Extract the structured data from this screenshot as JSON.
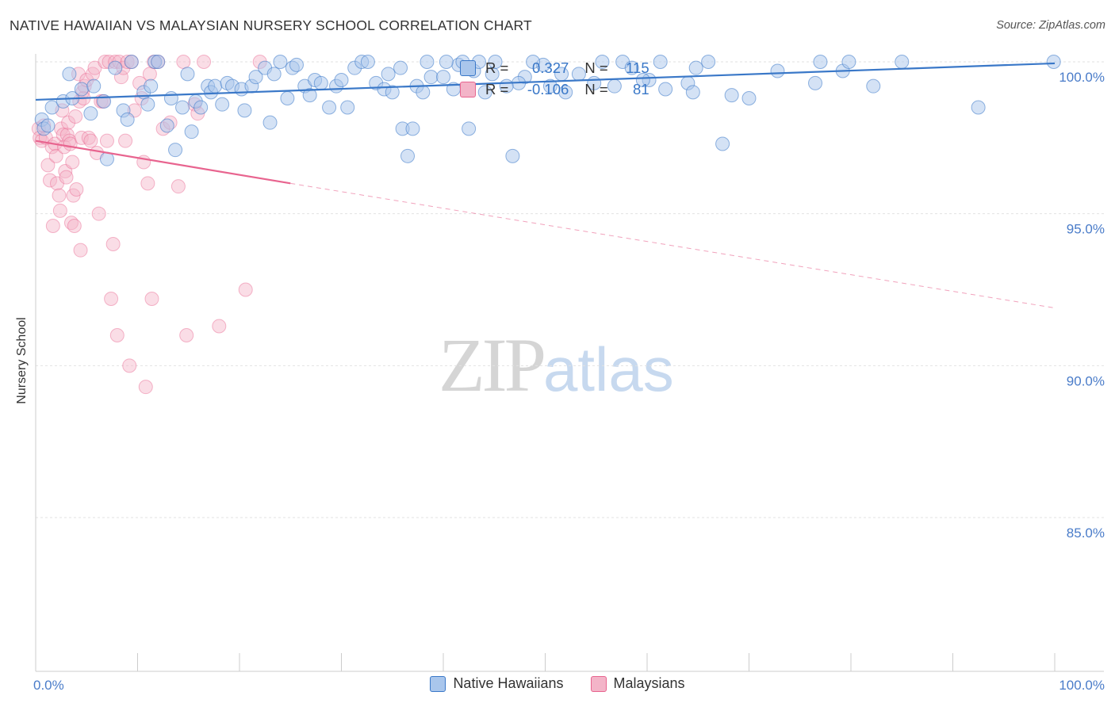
{
  "title": "NATIVE HAWAIIAN VS MALAYSIAN NURSERY SCHOOL CORRELATION CHART",
  "source": "Source: ZipAtlas.com",
  "watermark": {
    "zip": "ZIP",
    "atlas": "atlas"
  },
  "colors": {
    "blue": "#3a78c8",
    "blue_fill": "#a9c6ec",
    "pink": "#e8648f",
    "pink_fill": "#f3b4c8",
    "grid": "#e2e2e2",
    "tick_text": "#4a7cc9"
  },
  "stats": {
    "blue": {
      "r_label": "R =",
      "r_value": "0.327",
      "n_label": "N =",
      "n_value": "115"
    },
    "pink": {
      "r_label": "R =",
      "r_value": "-0.106",
      "n_label": "N =",
      "n_value": "81"
    }
  },
  "chart_data": {
    "type": "scatter",
    "title": "NATIVE HAWAIIAN VS MALAYSIAN NURSERY SCHOOL CORRELATION CHART",
    "xlabel": "",
    "ylabel": "Nursery School",
    "xlim": [
      0,
      100
    ],
    "ylim": [
      80.5,
      100.8
    ],
    "x_tick_labels": [
      "0.0%",
      "100.0%"
    ],
    "y_ticks": [
      85,
      90,
      95,
      100
    ],
    "y_tick_labels": [
      "85.0%",
      "90.0%",
      "95.0%",
      "100.0%"
    ],
    "legend": [
      "Native Hawaiians",
      "Malaysians"
    ],
    "series": [
      {
        "name": "Native Hawaiians",
        "color": "#3a78c8",
        "trend": {
          "x": [
            0,
            100
          ],
          "y": [
            98.75,
            99.95
          ],
          "dashed_x": null
        },
        "points": [
          [
            0.6,
            98.1
          ],
          [
            0.8,
            97.8
          ],
          [
            1.2,
            97.9
          ],
          [
            1.6,
            98.5
          ],
          [
            2.7,
            98.7
          ],
          [
            3.3,
            99.6
          ],
          [
            3.6,
            98.8
          ],
          [
            4.5,
            99.1
          ],
          [
            5.4,
            98.3
          ],
          [
            5.7,
            99.2
          ],
          [
            6.7,
            98.7
          ],
          [
            7.0,
            96.8
          ],
          [
            7.8,
            99.8
          ],
          [
            8.6,
            98.4
          ],
          [
            9.0,
            98.1
          ],
          [
            9.4,
            100.0
          ],
          [
            10.6,
            99.0
          ],
          [
            11.0,
            98.6
          ],
          [
            11.3,
            99.2
          ],
          [
            11.7,
            100.0
          ],
          [
            12.0,
            100.0
          ],
          [
            12.9,
            97.9
          ],
          [
            13.3,
            98.8
          ],
          [
            13.7,
            97.1
          ],
          [
            14.4,
            98.5
          ],
          [
            14.9,
            99.6
          ],
          [
            15.3,
            97.7
          ],
          [
            15.7,
            98.7
          ],
          [
            16.2,
            98.5
          ],
          [
            16.9,
            99.2
          ],
          [
            17.2,
            99.0
          ],
          [
            17.6,
            99.2
          ],
          [
            18.3,
            98.6
          ],
          [
            18.8,
            99.3
          ],
          [
            19.3,
            99.2
          ],
          [
            20.2,
            99.1
          ],
          [
            20.5,
            98.4
          ],
          [
            21.2,
            99.2
          ],
          [
            21.6,
            99.5
          ],
          [
            22.5,
            99.8
          ],
          [
            23.0,
            98.0
          ],
          [
            23.4,
            99.6
          ],
          [
            24.0,
            100.0
          ],
          [
            24.7,
            98.8
          ],
          [
            25.2,
            99.8
          ],
          [
            25.6,
            99.9
          ],
          [
            26.4,
            99.2
          ],
          [
            26.9,
            98.9
          ],
          [
            27.4,
            99.4
          ],
          [
            28.0,
            99.3
          ],
          [
            28.8,
            98.5
          ],
          [
            29.5,
            99.2
          ],
          [
            30.0,
            99.4
          ],
          [
            30.6,
            98.5
          ],
          [
            31.3,
            99.8
          ],
          [
            32.0,
            100.0
          ],
          [
            32.6,
            100.0
          ],
          [
            33.4,
            99.3
          ],
          [
            34.2,
            99.1
          ],
          [
            34.6,
            99.6
          ],
          [
            35.0,
            99.0
          ],
          [
            35.8,
            99.8
          ],
          [
            36.0,
            97.8
          ],
          [
            36.5,
            96.9
          ],
          [
            37.0,
            97.8
          ],
          [
            37.4,
            99.2
          ],
          [
            38.0,
            99.0
          ],
          [
            38.4,
            100.0
          ],
          [
            38.8,
            99.5
          ],
          [
            40.0,
            99.5
          ],
          [
            41.0,
            99.1
          ],
          [
            41.5,
            99.9
          ],
          [
            42.5,
            97.8
          ],
          [
            43.0,
            99.7
          ],
          [
            44.8,
            99.6
          ],
          [
            46.8,
            96.9
          ],
          [
            48.0,
            99.5
          ],
          [
            49.8,
            99.9
          ],
          [
            50.5,
            99.2
          ],
          [
            51.6,
            99.6
          ],
          [
            56.8,
            99.2
          ],
          [
            60.2,
            99.4
          ],
          [
            61.8,
            99.1
          ],
          [
            64.0,
            99.3
          ],
          [
            64.5,
            99.0
          ],
          [
            66.0,
            100.0
          ],
          [
            64.8,
            99.8
          ],
          [
            67.4,
            97.3
          ],
          [
            68.3,
            98.9
          ],
          [
            70.0,
            98.8
          ],
          [
            72.8,
            99.7
          ],
          [
            76.5,
            99.3
          ],
          [
            77.0,
            100.0
          ],
          [
            79.2,
            99.7
          ],
          [
            79.8,
            100.0
          ],
          [
            82.2,
            99.2
          ],
          [
            85.0,
            100.0
          ],
          [
            92.5,
            98.5
          ],
          [
            99.9,
            100.0
          ],
          [
            43.5,
            100.0
          ],
          [
            44.1,
            99.0
          ],
          [
            45.1,
            100.0
          ],
          [
            48.8,
            100.0
          ],
          [
            53.3,
            99.6
          ],
          [
            54.8,
            99.3
          ],
          [
            57.6,
            100.0
          ],
          [
            59.6,
            99.4
          ],
          [
            61.3,
            100.0
          ],
          [
            52.0,
            99.0
          ],
          [
            47.4,
            99.3
          ],
          [
            40.3,
            100.0
          ],
          [
            41.9,
            100.0
          ],
          [
            46.2,
            99.2
          ],
          [
            58.5,
            99.8
          ],
          [
            55.6,
            100.0
          ]
        ]
      },
      {
        "name": "Malaysians",
        "color": "#e8648f",
        "trend": {
          "x": [
            0,
            25
          ],
          "y": [
            97.4,
            96.0
          ],
          "dashed_x": [
            25,
            100
          ],
          "dashed_y": [
            96.0,
            91.9
          ]
        },
        "points": [
          [
            0.3,
            97.8
          ],
          [
            0.4,
            97.5
          ],
          [
            0.6,
            97.4
          ],
          [
            0.8,
            97.9
          ],
          [
            1.0,
            97.5
          ],
          [
            1.2,
            96.6
          ],
          [
            1.4,
            96.1
          ],
          [
            1.6,
            97.2
          ],
          [
            1.7,
            94.6
          ],
          [
            1.9,
            97.3
          ],
          [
            2.0,
            96.9
          ],
          [
            2.1,
            96.0
          ],
          [
            2.3,
            95.6
          ],
          [
            2.4,
            95.1
          ],
          [
            2.5,
            97.8
          ],
          [
            2.6,
            98.4
          ],
          [
            2.7,
            97.6
          ],
          [
            2.8,
            97.2
          ],
          [
            2.9,
            96.4
          ],
          [
            3.0,
            96.2
          ],
          [
            3.1,
            97.6
          ],
          [
            3.2,
            98.0
          ],
          [
            3.3,
            97.4
          ],
          [
            3.4,
            97.3
          ],
          [
            3.5,
            94.7
          ],
          [
            3.6,
            96.7
          ],
          [
            3.7,
            95.6
          ],
          [
            3.8,
            94.6
          ],
          [
            3.9,
            98.2
          ],
          [
            4.0,
            95.8
          ],
          [
            4.2,
            99.6
          ],
          [
            4.3,
            98.7
          ],
          [
            4.4,
            93.8
          ],
          [
            4.5,
            97.5
          ],
          [
            4.6,
            99.0
          ],
          [
            4.7,
            98.8
          ],
          [
            4.8,
            99.2
          ],
          [
            5.0,
            99.4
          ],
          [
            5.2,
            97.5
          ],
          [
            5.4,
            97.4
          ],
          [
            5.6,
            99.6
          ],
          [
            5.8,
            99.8
          ],
          [
            6.0,
            97.0
          ],
          [
            6.2,
            95.0
          ],
          [
            6.4,
            98.7
          ],
          [
            6.6,
            98.7
          ],
          [
            6.8,
            100.0
          ],
          [
            7.0,
            97.4
          ],
          [
            7.2,
            100.0
          ],
          [
            7.4,
            92.2
          ],
          [
            7.6,
            94.0
          ],
          [
            7.8,
            100.0
          ],
          [
            8.0,
            91.0
          ],
          [
            8.2,
            100.0
          ],
          [
            8.4,
            99.5
          ],
          [
            8.6,
            99.8
          ],
          [
            8.8,
            97.4
          ],
          [
            9.0,
            100.0
          ],
          [
            9.2,
            90.0
          ],
          [
            9.4,
            100.0
          ],
          [
            10.2,
            99.3
          ],
          [
            10.4,
            98.8
          ],
          [
            10.6,
            96.7
          ],
          [
            10.8,
            89.3
          ],
          [
            11.0,
            96.0
          ],
          [
            11.2,
            99.6
          ],
          [
            11.4,
            92.2
          ],
          [
            11.6,
            100.0
          ],
          [
            12.5,
            97.8
          ],
          [
            13.2,
            98.0
          ],
          [
            14.0,
            95.9
          ],
          [
            14.5,
            100.0
          ],
          [
            14.8,
            91.0
          ],
          [
            15.6,
            98.6
          ],
          [
            15.9,
            98.3
          ],
          [
            16.5,
            100.0
          ],
          [
            18.0,
            91.3
          ],
          [
            20.6,
            92.5
          ],
          [
            22.0,
            100.0
          ],
          [
            9.7,
            98.4
          ],
          [
            12.0,
            100.0
          ]
        ]
      }
    ]
  }
}
